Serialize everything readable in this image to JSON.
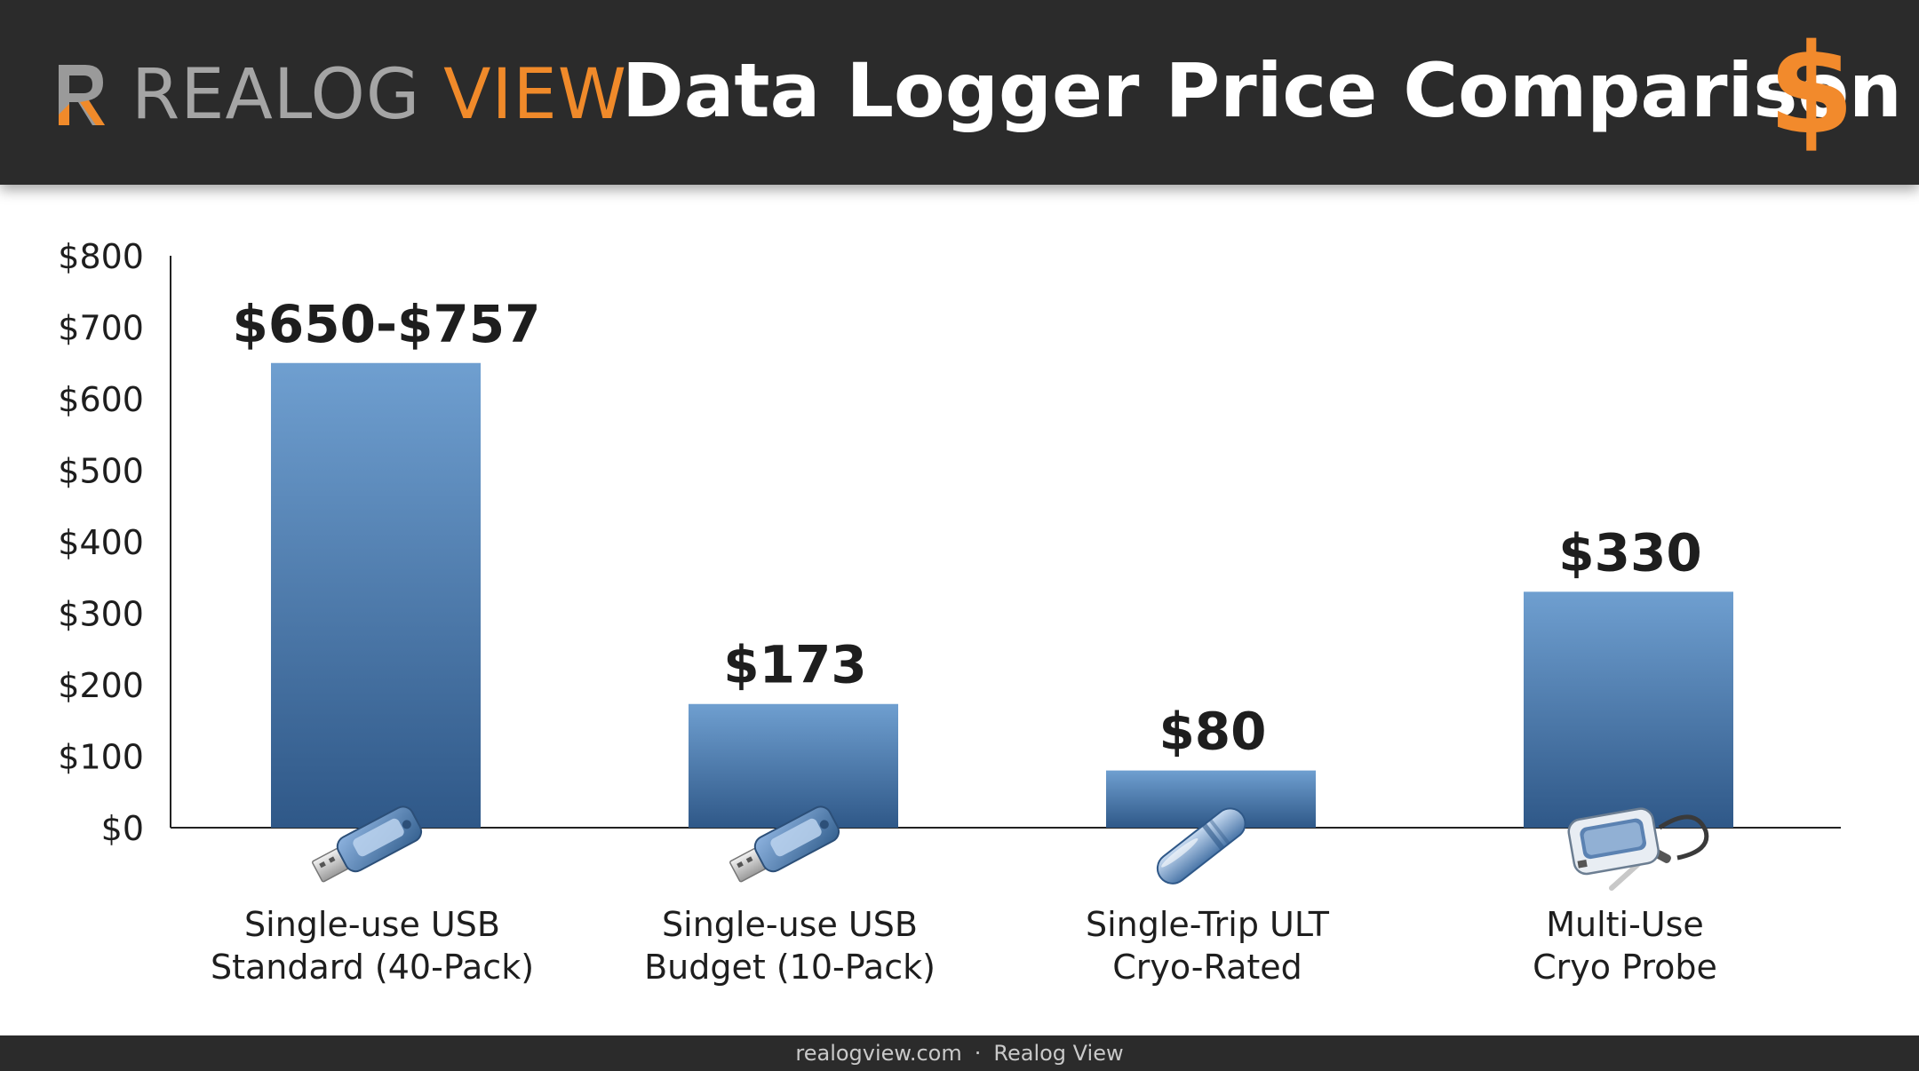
{
  "header": {
    "logo_text_left": "REALOG ",
    "logo_text_accent": "VIEW",
    "title": "Data Logger Price Comparison",
    "title_icon": "dollar-sign-icon",
    "accent_color": "#f08a2a"
  },
  "chart_data": {
    "type": "bar",
    "categories": [
      [
        "Single-use USB",
        "Standard (40-Pack)"
      ],
      [
        "Single-use USB",
        "Budget (10-Pack)"
      ],
      [
        "Single-Trip ULT",
        "Cryo-Rated"
      ],
      [
        "Multi-Use",
        "Cryo Probe"
      ]
    ],
    "values": [
      650,
      173,
      80,
      330
    ],
    "data_labels": [
      "$650-$757",
      "$173",
      "$80",
      "$330"
    ],
    "icons": [
      "usb-drive-icon",
      "usb-drive-icon",
      "cryo-capsule-icon",
      "probe-logger-icon"
    ],
    "yticks": [
      "$0",
      "$100",
      "$200",
      "$300",
      "$400",
      "$500",
      "$600",
      "$700",
      "$800"
    ],
    "ylim": [
      0,
      800
    ],
    "grid": false,
    "bar_color_top": "#6f9fd0",
    "bar_color_bottom": "#2f5888"
  },
  "footer": {
    "site": "realogview.com",
    "separator": "·",
    "brand": "Realog View"
  }
}
